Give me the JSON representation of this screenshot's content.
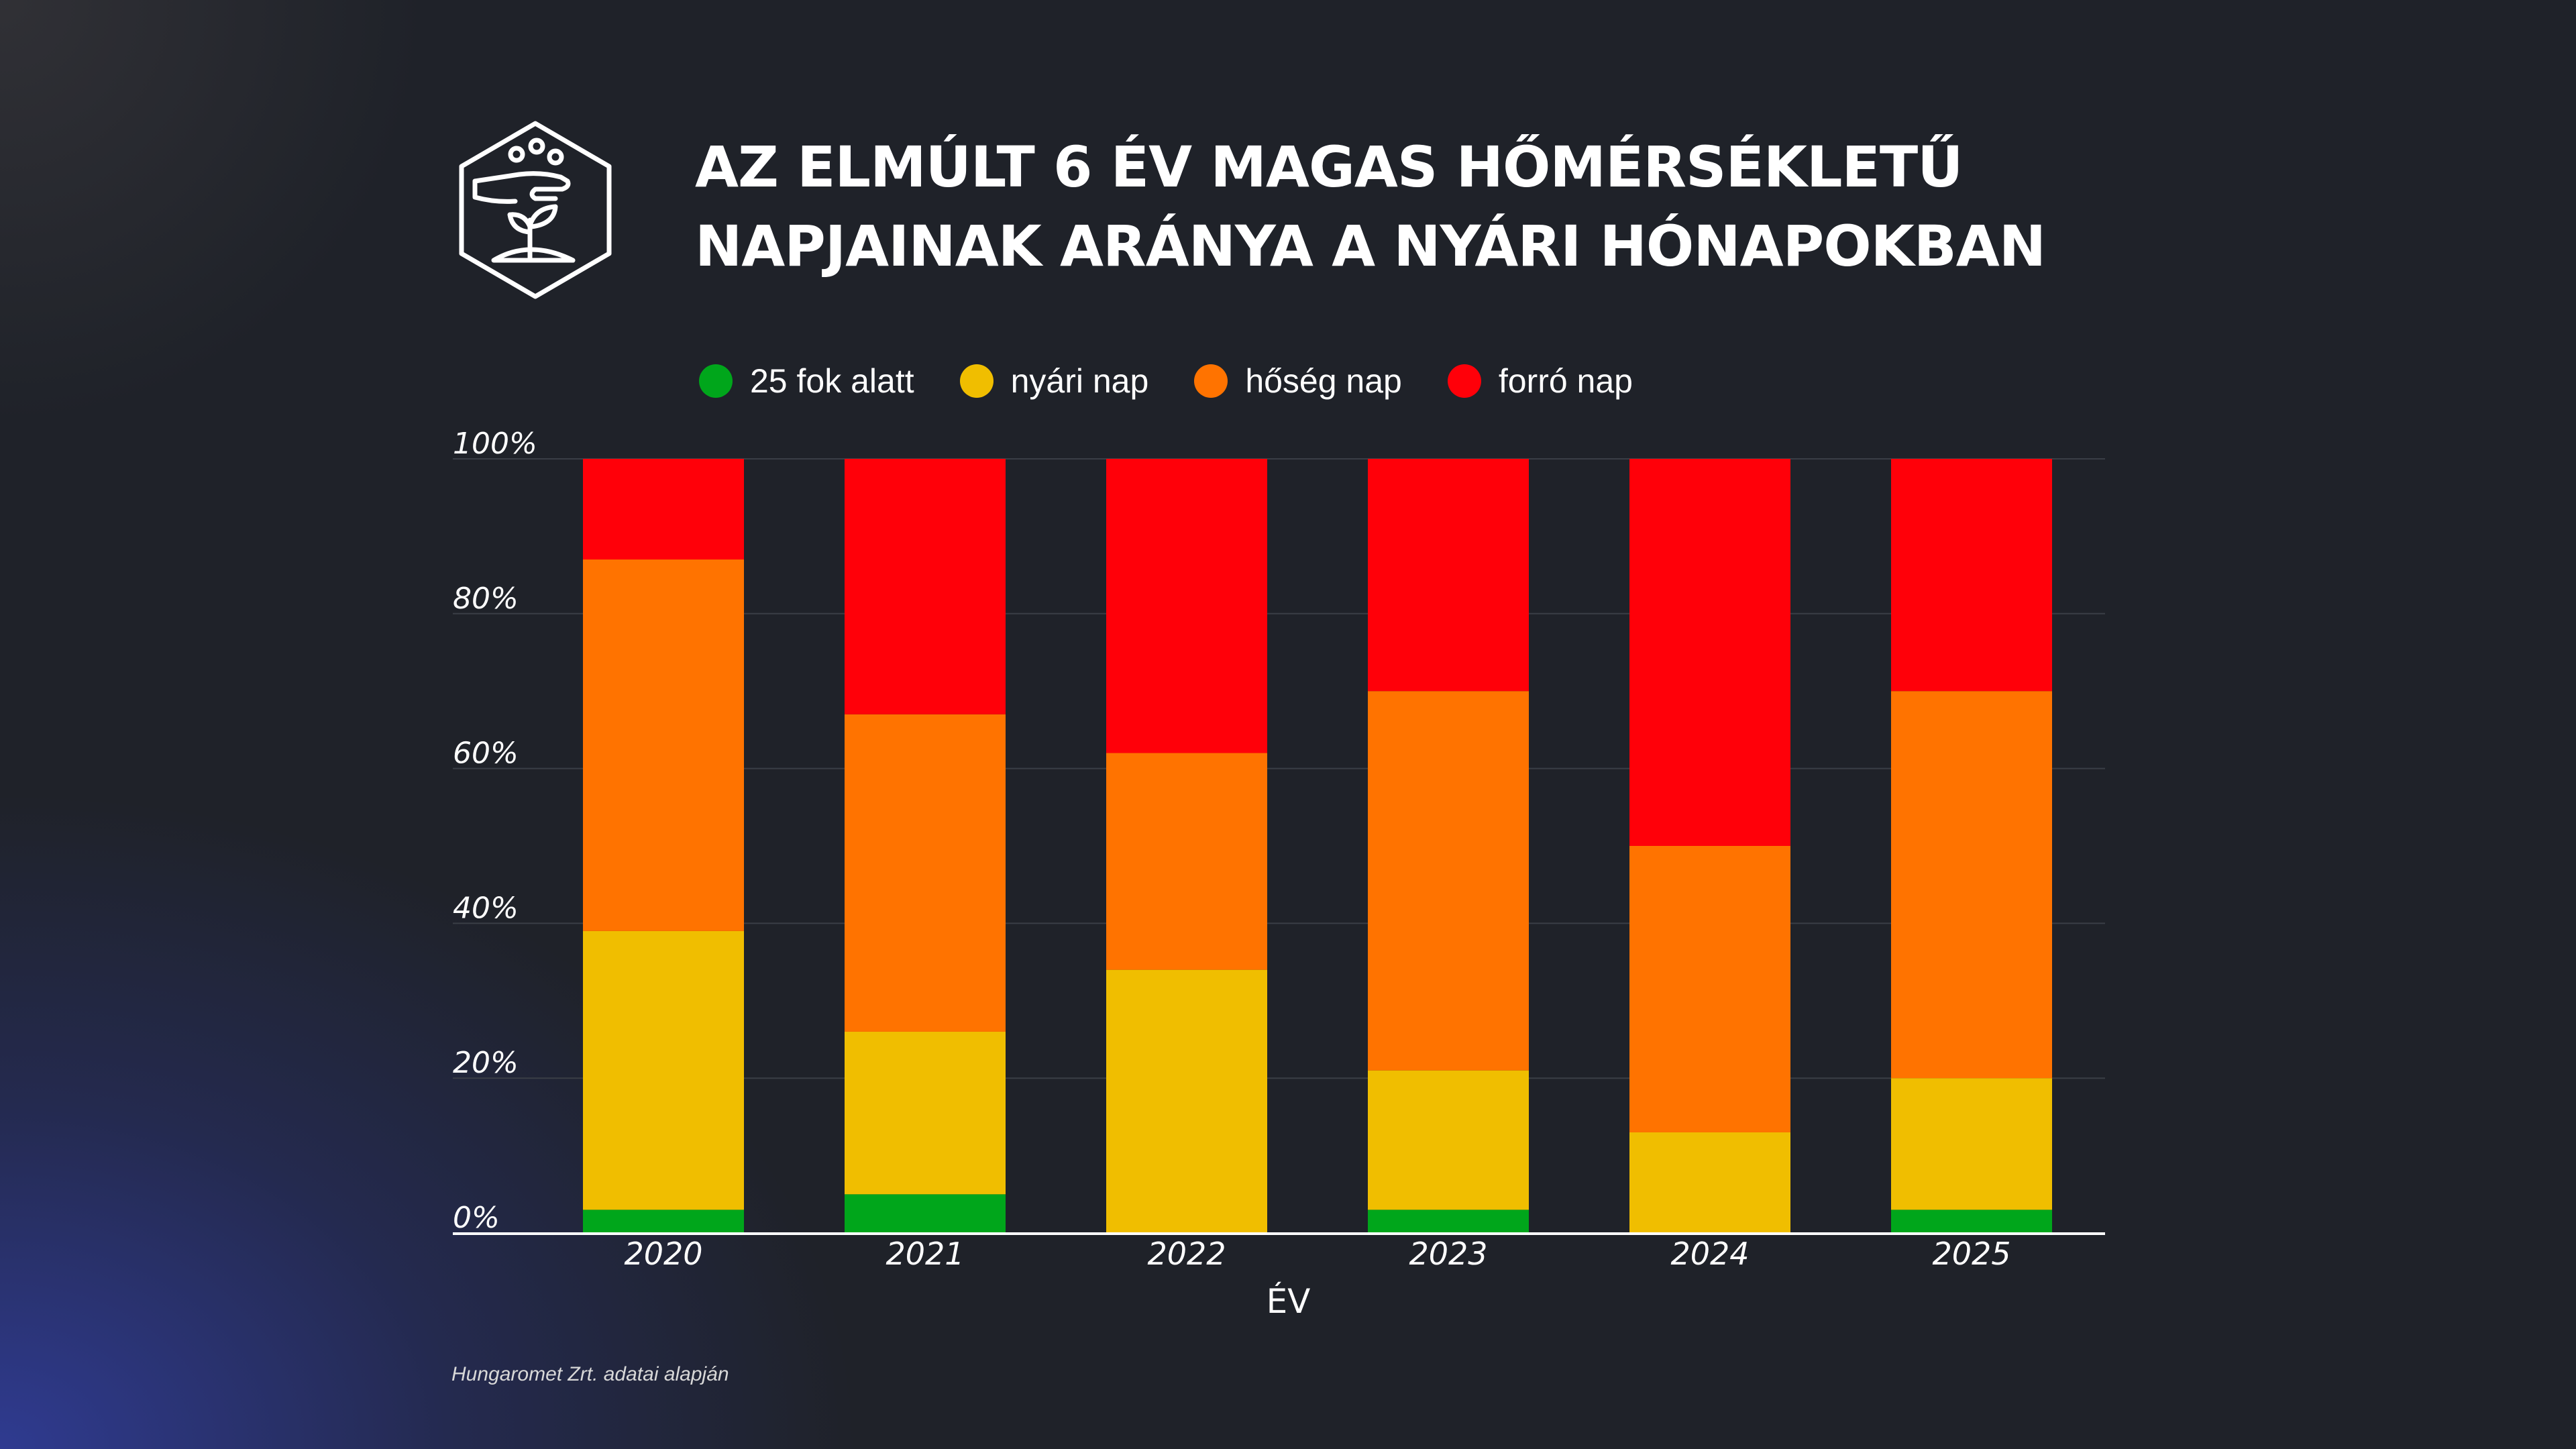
{
  "header": {
    "title_line1": "AZ ELMÚLT 6 ÉV MAGAS HŐMÉRSÉKLETŰ",
    "title_line2": "NAPJAINAK ARÁNYA A NYÁRI HÓNAPOKBAN",
    "logo_icon": "hand-seed-plant-hexagon-icon"
  },
  "footer": {
    "source": "Hungaromet Zrt. adatai alapján"
  },
  "colors": {
    "background": "#1f2229",
    "green": "#00a61b",
    "yellow": "#f0be00",
    "orange": "#ff7300",
    "red": "#ff0009",
    "text": "#ffffff",
    "grid": "#3a3e46"
  },
  "chart_data": {
    "type": "bar",
    "stacked": true,
    "title": "AZ ELMÚLT 6 ÉV MAGAS HŐMÉRSÉKLETŰ NAPJAINAK ARÁNYA A NYÁRI HÓNAPOKBAN",
    "xlabel": "ÉV",
    "ylabel": "",
    "categories": [
      "2020",
      "2021",
      "2022",
      "2023",
      "2024",
      "2025"
    ],
    "ylim": [
      0,
      100
    ],
    "yticks": [
      0,
      20,
      40,
      60,
      80,
      100
    ],
    "ytick_labels": [
      "0%",
      "20%",
      "40%",
      "60%",
      "80%",
      "100%"
    ],
    "grid": true,
    "legend_position": "top",
    "series": [
      {
        "name": "25 fok alatt",
        "color": "#00a61b",
        "values": [
          3,
          5,
          0,
          3,
          0,
          3
        ]
      },
      {
        "name": "nyári nap",
        "color": "#f0be00",
        "values": [
          36,
          21,
          34,
          18,
          13,
          17
        ]
      },
      {
        "name": "hőség nap",
        "color": "#ff7300",
        "values": [
          48,
          41,
          28,
          49,
          37,
          50
        ]
      },
      {
        "name": "forró nap",
        "color": "#ff0009",
        "values": [
          13,
          33,
          38,
          30,
          50,
          30
        ]
      }
    ]
  }
}
